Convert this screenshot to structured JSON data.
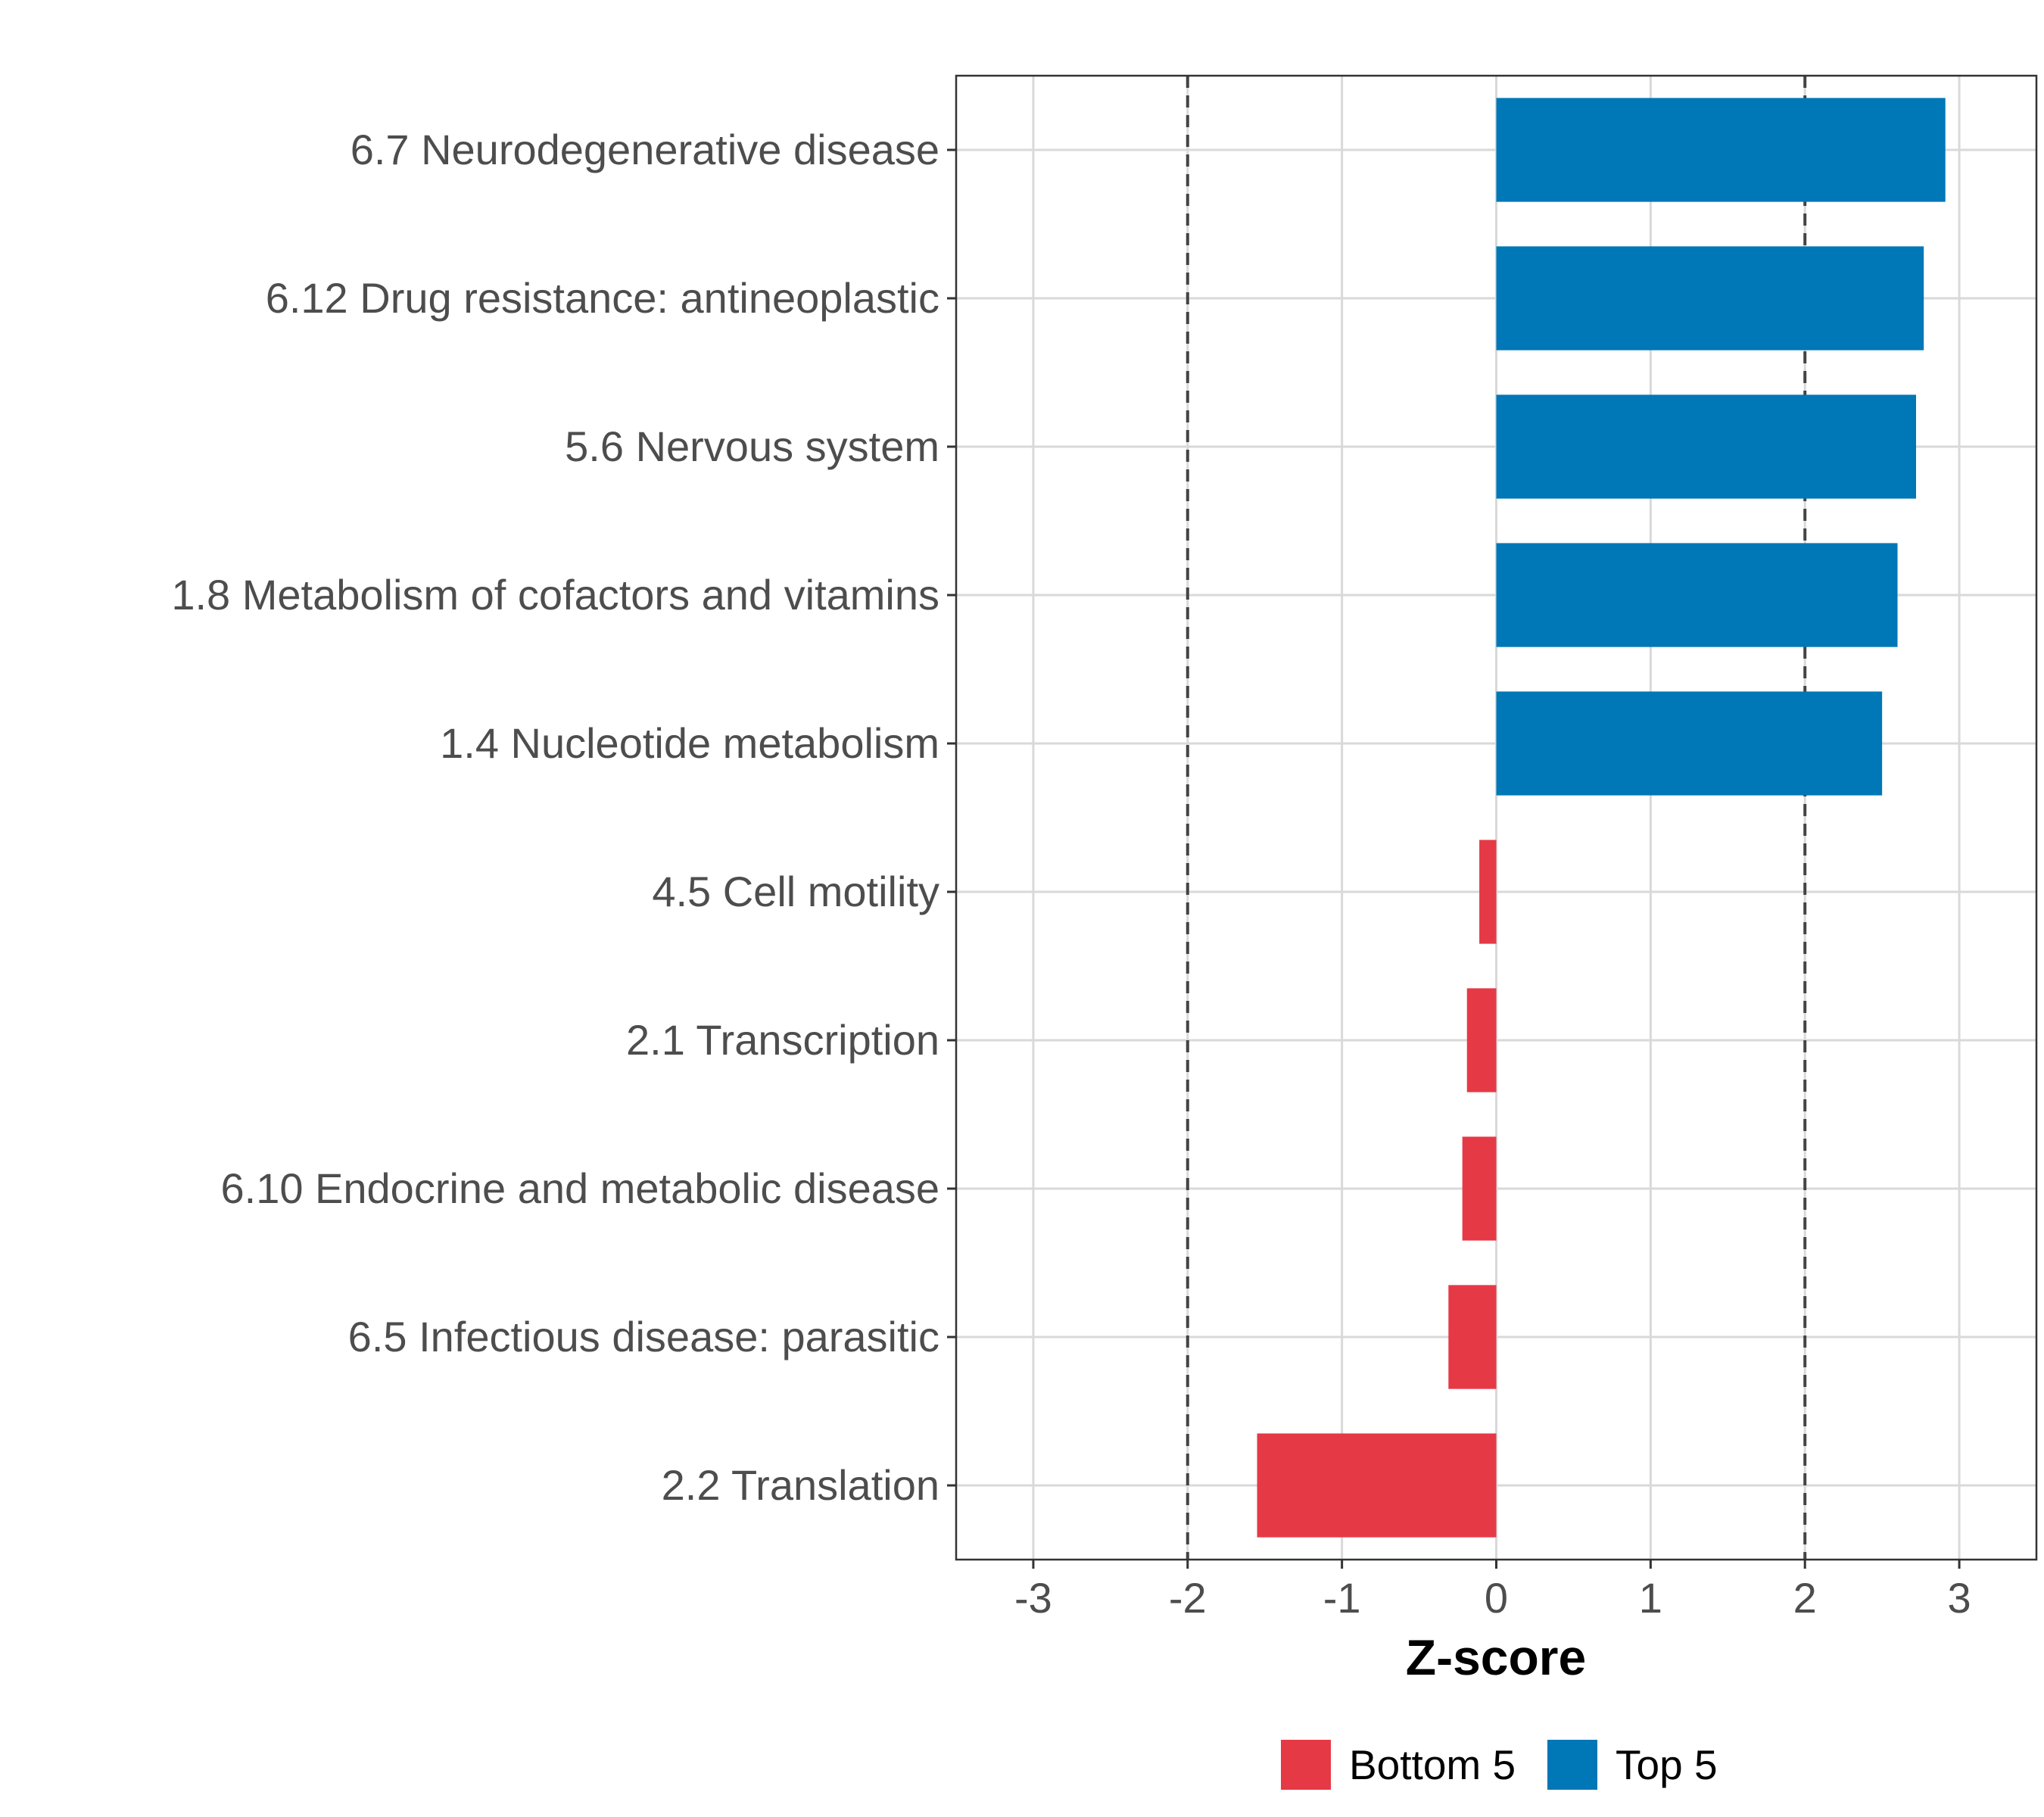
{
  "chart_data": {
    "type": "bar",
    "orientation": "horizontal",
    "title": "",
    "xlabel": "Z-score",
    "ylabel": "",
    "xlim": [
      -3.5,
      3.5
    ],
    "x_ticks": [
      -3,
      -2,
      -1,
      0,
      1,
      2,
      3
    ],
    "x_tick_labels": [
      "-3",
      "-2",
      "-1",
      "0",
      "1",
      "2",
      "3"
    ],
    "reference_lines": [
      -2,
      2
    ],
    "grid": true,
    "legend_position": "bottom",
    "categories": [
      "6.7 Neurodegenerative disease",
      "6.12 Drug resistance: antineoplastic",
      "5.6 Nervous system",
      "1.8 Metabolism of cofactors and vitamins",
      "1.4 Nucleotide metabolism",
      "4.5 Cell motility",
      "2.1 Transcription",
      "6.10 Endocrine and metabolic disease",
      "6.5 Infectious disease: parasitic",
      "2.2 Translation"
    ],
    "values": [
      2.91,
      2.77,
      2.72,
      2.6,
      2.5,
      -0.11,
      -0.19,
      -0.22,
      -0.31,
      -1.55
    ],
    "groups": [
      "Top 5",
      "Top 5",
      "Top 5",
      "Top 5",
      "Top 5",
      "Bottom 5",
      "Bottom 5",
      "Bottom 5",
      "Bottom 5",
      "Bottom 5"
    ],
    "legend": [
      {
        "name": "Bottom 5",
        "color": "#E63946"
      },
      {
        "name": "Top 5",
        "color": "#0077B6"
      }
    ]
  }
}
